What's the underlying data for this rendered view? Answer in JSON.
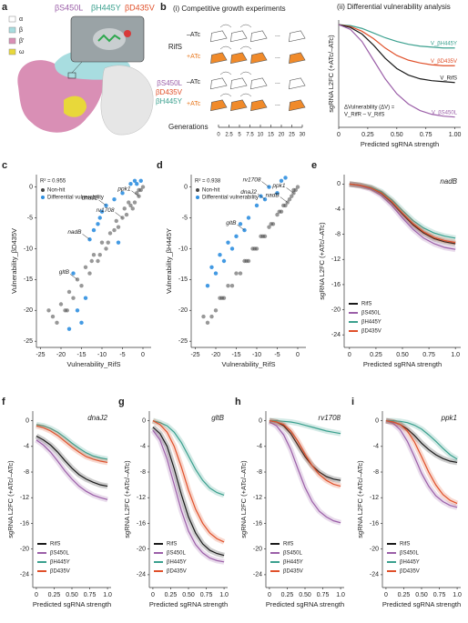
{
  "panel_labels": [
    "a",
    "b",
    "c",
    "d",
    "e",
    "f",
    "g",
    "h",
    "i"
  ],
  "structure": {
    "legend": [
      "α",
      "β",
      "β′",
      "ω"
    ],
    "mutations": [
      "βS450L",
      "βH445Y",
      "βD435V"
    ]
  },
  "schematic": {
    "title": "(i) Competitive growth experiments",
    "strain_wt": "RifS",
    "minus": "–ATc",
    "plus": "+ATc",
    "mutants": [
      "βS450L",
      "βD435V",
      "βH445Y"
    ],
    "ellipsis": "...",
    "generations_label": "Generations",
    "generations": [
      0,
      2.5,
      5,
      7.5,
      10,
      15,
      20,
      25,
      30
    ]
  },
  "chart_data": [
    {
      "type": "line",
      "title": "(ii) Differential vulnerability analysis",
      "x_label": "Predicted sgRNA strength",
      "y_label": "sgRNA L2FC (+ATc/–ATc)",
      "annotation": [
        "ΔVulnerability (ΔV) =",
        "V_RifR – V_RifS"
      ],
      "legend": "inline",
      "x": [
        0,
        0.1,
        0.2,
        0.3,
        0.4,
        0.5,
        0.6,
        0.7,
        0.8,
        0.9,
        1.0
      ],
      "xlim": [
        0,
        1.05
      ],
      "ylim": [
        -1.1,
        0.05
      ],
      "xticks": [
        0,
        0.25,
        {
          "value": 0.5,
          "label": "0.50"
        },
        0.75,
        {
          "value": 1,
          "label": "1.00"
        }
      ],
      "series": [
        {
          "name": "V_βH445Y",
          "color": "#3aa08e",
          "values": [
            0,
            -0.01,
            -0.04,
            -0.09,
            -0.14,
            -0.18,
            -0.21,
            -0.23,
            -0.24,
            -0.25,
            -0.25
          ]
        },
        {
          "name": "V_βD435V",
          "color": "#e0502a",
          "values": [
            0,
            -0.02,
            -0.07,
            -0.15,
            -0.25,
            -0.33,
            -0.38,
            -0.41,
            -0.43,
            -0.44,
            -0.44
          ]
        },
        {
          "name": "V_RifS",
          "color": "#1a1a1a",
          "values": [
            0,
            -0.03,
            -0.1,
            -0.22,
            -0.36,
            -0.47,
            -0.54,
            -0.58,
            -0.6,
            -0.61,
            -0.62
          ]
        },
        {
          "name": "V_βS450L",
          "color": "#9b5fa8",
          "values": [
            0,
            -0.05,
            -0.18,
            -0.38,
            -0.58,
            -0.74,
            -0.85,
            -0.92,
            -0.96,
            -0.98,
            -0.99
          ]
        }
      ]
    },
    {
      "type": "scatter",
      "x_label": "Vulnerability_RifS",
      "y_label": "Vulnerability_βD435V",
      "annotation": [
        "R² = 0.955"
      ],
      "legend": "upper left",
      "xlim": [
        -26,
        2
      ],
      "ylim": [
        -26,
        2
      ],
      "xticks": [
        -25,
        -20,
        -15,
        -10,
        -5,
        0
      ],
      "yticks": [
        -25,
        -20,
        -15,
        -10,
        -5,
        0
      ],
      "series": [
        {
          "name": "Non-hit",
          "color": "#444444",
          "x": [
            -22,
            -21,
            -20,
            -19,
            -18,
            -17,
            -16,
            -15,
            -14,
            -13,
            -12,
            -11,
            -10,
            -9,
            -8,
            -7,
            -6,
            -5,
            -4,
            -3,
            -2,
            -1.5,
            -1,
            -0.5,
            0,
            -3.5,
            -2.5,
            -6.5,
            -8.5,
            -12.5,
            -23,
            -18.5,
            -10.5,
            -4.5,
            -1
          ],
          "values": [
            -21,
            -22,
            -19,
            -20,
            -17,
            -18,
            -15,
            -16,
            -13,
            -14,
            -11,
            -12,
            -9,
            -10,
            -7.5,
            -7,
            -6.5,
            -5,
            -4.5,
            -3,
            -2.5,
            -1,
            -1.5,
            -0.5,
            0,
            -2.5,
            -3.5,
            -5.5,
            -9,
            -12,
            -20,
            -20,
            -11,
            -3.5,
            -0.5
          ]
        },
        {
          "name": "Differential vulnerability",
          "color": "#2f8fe0",
          "x": [
            -9,
            -10,
            -7,
            -5,
            -3,
            -1.5,
            -12,
            -13,
            -16,
            -15,
            -18,
            -11,
            -2,
            -0.5,
            -14,
            -6,
            -17,
            -10.5
          ],
          "values": [
            -3,
            -4,
            -2,
            -1,
            0.5,
            0.5,
            -7,
            -8.5,
            -20,
            -22,
            -23,
            -6,
            1,
            1,
            -18,
            -9,
            -14,
            -5
          ]
        }
      ],
      "labels": [
        {
          "text": "dnaJ2",
          "x": -9,
          "y": -3
        },
        {
          "text": "nadB",
          "x": -13,
          "y": -8.5
        },
        {
          "text": "ppk1",
          "x": -1,
          "y": -1.5
        },
        {
          "text": "rv1708",
          "x": -5,
          "y": -5
        },
        {
          "text": "gltB",
          "x": -16,
          "y": -15
        }
      ]
    },
    {
      "type": "scatter",
      "x_label": "Vulnerability_RifS",
      "y_label": "Vulnerability_βH445Y",
      "annotation": [
        "R² = 0.938"
      ],
      "legend": "upper left",
      "xlim": [
        -26,
        2
      ],
      "ylim": [
        -26,
        2
      ],
      "xticks": [
        -25,
        -20,
        -15,
        -10,
        -5,
        0
      ],
      "yticks": [
        -25,
        -20,
        -15,
        -10,
        -5,
        0
      ],
      "series": [
        {
          "name": "Non-hit",
          "color": "#444444",
          "x": [
            -22,
            -21,
            -20,
            -19,
            -18,
            -17,
            -16,
            -15,
            -14,
            -13,
            -12,
            -11,
            -10,
            -9,
            -8,
            -7,
            -6,
            -5,
            -4,
            -3,
            -2,
            -1.5,
            -1,
            -0.5,
            0,
            -3.5,
            -2.5,
            -6.5,
            -8.5,
            -12.5,
            -23,
            -18.5,
            -10.5,
            -4.5,
            -1
          ],
          "values": [
            -22,
            -21,
            -20,
            -18,
            -18,
            -16,
            -16,
            -14,
            -14,
            -12,
            -12,
            -10,
            -10,
            -8,
            -8,
            -6.5,
            -6,
            -4.5,
            -4,
            -3,
            -2,
            -1.5,
            -1,
            -0.5,
            0,
            -3,
            -2.5,
            -6,
            -8,
            -12,
            -21,
            -18,
            -10,
            -4,
            -0.5
          ]
        },
        {
          "name": "Differential vulnerability",
          "color": "#2f8fe0",
          "x": [
            -22,
            -21,
            -20,
            -19,
            -18,
            -17,
            -16,
            -15,
            -14,
            -13,
            -12,
            -10,
            -9,
            -8,
            -7,
            -5,
            -4,
            -3
          ],
          "values": [
            -16,
            -13,
            -14,
            -11,
            -12,
            -9,
            -10,
            -8,
            -6,
            -7,
            -5,
            -3,
            -1.5,
            -2,
            0,
            -1,
            1,
            1.5
          ]
        }
      ],
      "labels": [
        {
          "text": "rv1708",
          "x": -7,
          "y": 0
        },
        {
          "text": "dnaJ2",
          "x": -8,
          "y": -2
        },
        {
          "text": "gltB",
          "x": -13,
          "y": -7
        },
        {
          "text": "ppk1",
          "x": -1,
          "y": -1
        },
        {
          "text": "nadB",
          "x": -2.5,
          "y": -2.5
        }
      ]
    },
    {
      "type": "line",
      "title": "nadB",
      "x_label": "Predicted sgRNA strength",
      "y_label": "sgRNA L2FC (+ATc/–ATc)",
      "legend": "lower left",
      "x": [
        0,
        0.1,
        0.2,
        0.3,
        0.4,
        0.5,
        0.6,
        0.7,
        0.8,
        0.9,
        1.0
      ],
      "xlim": [
        -0.05,
        1.05
      ],
      "ylim": [
        -26,
        1.5
      ],
      "xticks": [
        0,
        0.25,
        {
          "value": 0.5,
          "label": "0.50"
        },
        0.75,
        {
          "value": 1,
          "label": "1.0"
        }
      ],
      "yticks": [
        0,
        -4,
        -8,
        -12,
        -16,
        -20,
        -24
      ],
      "series": [
        {
          "name": "RifS",
          "color": "#1a1a1a",
          "values": [
            0,
            -0.2,
            -0.6,
            -1.5,
            -3,
            -4.8,
            -6.5,
            -7.8,
            -8.7,
            -9.2,
            -9.5
          ]
        },
        {
          "name": "βS450L",
          "color": "#9b5fa8",
          "values": [
            0,
            -0.3,
            -0.8,
            -1.8,
            -3.4,
            -5.4,
            -7.2,
            -8.6,
            -9.5,
            -10.1,
            -10.4
          ]
        },
        {
          "name": "βH445Y",
          "color": "#3aa08e",
          "values": [
            0,
            -0.2,
            -0.5,
            -1.2,
            -2.5,
            -4.2,
            -5.8,
            -7,
            -7.8,
            -8.3,
            -8.6
          ]
        },
        {
          "name": "βD435V",
          "color": "#e0502a",
          "values": [
            0,
            -0.2,
            -0.6,
            -1.4,
            -2.8,
            -4.6,
            -6.3,
            -7.6,
            -8.5,
            -9,
            -9.3
          ]
        }
      ]
    },
    {
      "type": "line",
      "title": "dnaJ2",
      "x_label": "Predicted sgRNA strength",
      "y_label": "sgRNA L2FC (+ATc/–ATc)",
      "legend": "lower left",
      "x": [
        0,
        0.1,
        0.2,
        0.3,
        0.4,
        0.5,
        0.6,
        0.7,
        0.8,
        0.9,
        1.0
      ],
      "xlim": [
        -0.05,
        1.05
      ],
      "ylim": [
        -26,
        1.5
      ],
      "xticks": [
        0,
        0.25,
        {
          "value": 0.5,
          "label": "0.50"
        },
        0.75,
        {
          "value": 1,
          "label": "1.0"
        }
      ],
      "yticks": [
        0,
        -4,
        -8,
        -12,
        -16,
        -20,
        -24
      ],
      "series": [
        {
          "name": "RifS",
          "color": "#1a1a1a",
          "values": [
            -2.4,
            -3,
            -3.8,
            -4.9,
            -6.2,
            -7.4,
            -8.4,
            -9.1,
            -9.6,
            -10,
            -10.2
          ]
        },
        {
          "name": "βS450L",
          "color": "#9b5fa8",
          "values": [
            -3,
            -3.8,
            -4.9,
            -6.3,
            -7.8,
            -9.1,
            -10.2,
            -11,
            -11.6,
            -12,
            -12.3
          ]
        },
        {
          "name": "βH445Y",
          "color": "#3aa08e",
          "values": [
            -0.6,
            -0.8,
            -1.2,
            -1.8,
            -2.6,
            -3.5,
            -4.3,
            -5,
            -5.5,
            -5.8,
            -6
          ]
        },
        {
          "name": "βD435V",
          "color": "#e0502a",
          "values": [
            -0.8,
            -1.1,
            -1.6,
            -2.3,
            -3.2,
            -4.1,
            -4.9,
            -5.6,
            -6,
            -6.3,
            -6.5
          ]
        }
      ]
    },
    {
      "type": "line",
      "title": "gltB",
      "x_label": "Predicted sgRNA strength",
      "y_label": "sgRNA L2FC (+ATc/–ATc)",
      "legend": "lower left",
      "x": [
        0,
        0.1,
        0.2,
        0.3,
        0.4,
        0.5,
        0.6,
        0.7,
        0.8,
        0.9,
        1.0
      ],
      "xlim": [
        -0.05,
        1.05
      ],
      "ylim": [
        -26,
        1.5
      ],
      "xticks": [
        0,
        0.25,
        {
          "value": 0.5,
          "label": "0.50"
        },
        0.75,
        {
          "value": 1,
          "label": "1.0"
        }
      ],
      "yticks": [
        0,
        -4,
        -8,
        -12,
        -16,
        -20,
        -24
      ],
      "series": [
        {
          "name": "RifS",
          "color": "#1a1a1a",
          "values": [
            -1,
            -2,
            -4,
            -7.5,
            -11.5,
            -15,
            -17.5,
            -19.2,
            -20.2,
            -20.7,
            -21
          ]
        },
        {
          "name": "βS450L",
          "color": "#9b5fa8",
          "values": [
            -1.5,
            -3,
            -6,
            -10,
            -14,
            -17.2,
            -19.3,
            -20.6,
            -21.4,
            -21.8,
            -22
          ]
        },
        {
          "name": "βH445Y",
          "color": "#3aa08e",
          "values": [
            0,
            -0.3,
            -0.8,
            -1.8,
            -3.4,
            -5.5,
            -7.6,
            -9.3,
            -10.5,
            -11.2,
            -11.6
          ]
        },
        {
          "name": "βD435V",
          "color": "#e0502a",
          "values": [
            0,
            -0.6,
            -1.8,
            -4,
            -7.2,
            -10.8,
            -13.8,
            -16,
            -17.5,
            -18.4,
            -18.9
          ]
        }
      ]
    },
    {
      "type": "line",
      "title": "rv1708",
      "x_label": "Predicted sgRNA strength",
      "y_label": "sgRNA L2FC (+ATc/–ATc)",
      "legend": "lower left",
      "x": [
        0,
        0.1,
        0.2,
        0.3,
        0.4,
        0.5,
        0.6,
        0.7,
        0.8,
        0.9,
        1.0
      ],
      "xlim": [
        -0.05,
        1.05
      ],
      "ylim": [
        -26,
        1.5
      ],
      "xticks": [
        0,
        0.25,
        {
          "value": 0.5,
          "label": "0.50"
        },
        0.75,
        {
          "value": 1,
          "label": "1.0"
        }
      ],
      "yticks": [
        0,
        -4,
        -8,
        -12,
        -16,
        -20,
        -24
      ],
      "series": [
        {
          "name": "RifS",
          "color": "#1a1a1a",
          "values": [
            0,
            -0.2,
            -0.8,
            -2,
            -3.8,
            -5.6,
            -7,
            -8,
            -8.7,
            -9.1,
            -9.3
          ]
        },
        {
          "name": "βS450L",
          "color": "#9b5fa8",
          "values": [
            -0.2,
            -0.8,
            -2.2,
            -4.5,
            -7.5,
            -10.4,
            -12.6,
            -14.1,
            -15,
            -15.6,
            -15.9
          ]
        },
        {
          "name": "βH445Y",
          "color": "#3aa08e",
          "values": [
            0,
            0,
            -0.1,
            -0.2,
            -0.4,
            -0.7,
            -1,
            -1.3,
            -1.6,
            -1.8,
            -2
          ]
        },
        {
          "name": "βD435V",
          "color": "#e0502a",
          "values": [
            0,
            -0.2,
            -0.6,
            -1.6,
            -3.2,
            -5.2,
            -7,
            -8.4,
            -9.3,
            -9.9,
            -10.2
          ]
        }
      ]
    },
    {
      "type": "line",
      "title": "ppk1",
      "x_label": "Predicted sgRNA strength",
      "y_label": "sgRNA L2FC (+ATc/–ATc)",
      "legend": "lower left",
      "x": [
        0,
        0.1,
        0.2,
        0.3,
        0.4,
        0.5,
        0.6,
        0.7,
        0.8,
        0.9,
        1.0
      ],
      "xlim": [
        -0.05,
        1.05
      ],
      "ylim": [
        -26,
        1.5
      ],
      "xticks": [
        0,
        0.25,
        {
          "value": 0.5,
          "label": "0.50"
        },
        0.75,
        {
          "value": 1,
          "label": "1.0"
        }
      ],
      "yticks": [
        0,
        -4,
        -8,
        -12,
        -16,
        -20,
        -24
      ],
      "series": [
        {
          "name": "RifS",
          "color": "#1a1a1a",
          "values": [
            0,
            -0.2,
            -0.6,
            -1.3,
            -2.3,
            -3.5,
            -4.5,
            -5.3,
            -5.9,
            -6.3,
            -6.5
          ]
        },
        {
          "name": "βS450L",
          "color": "#9b5fa8",
          "values": [
            0,
            -0.4,
            -1.4,
            -3.2,
            -5.6,
            -8.2,
            -10.2,
            -11.7,
            -12.6,
            -13.2,
            -13.5
          ]
        },
        {
          "name": "βH445Y",
          "color": "#3aa08e",
          "values": [
            0,
            0,
            -0.1,
            -0.3,
            -0.7,
            -1.3,
            -2.2,
            -3.2,
            -4.3,
            -5.3,
            -6
          ]
        },
        {
          "name": "βD435V",
          "color": "#e0502a",
          "values": [
            0,
            -0.2,
            -0.6,
            -1.6,
            -3.3,
            -5.6,
            -8,
            -10,
            -11.5,
            -12.4,
            -12.9
          ]
        }
      ]
    }
  ]
}
